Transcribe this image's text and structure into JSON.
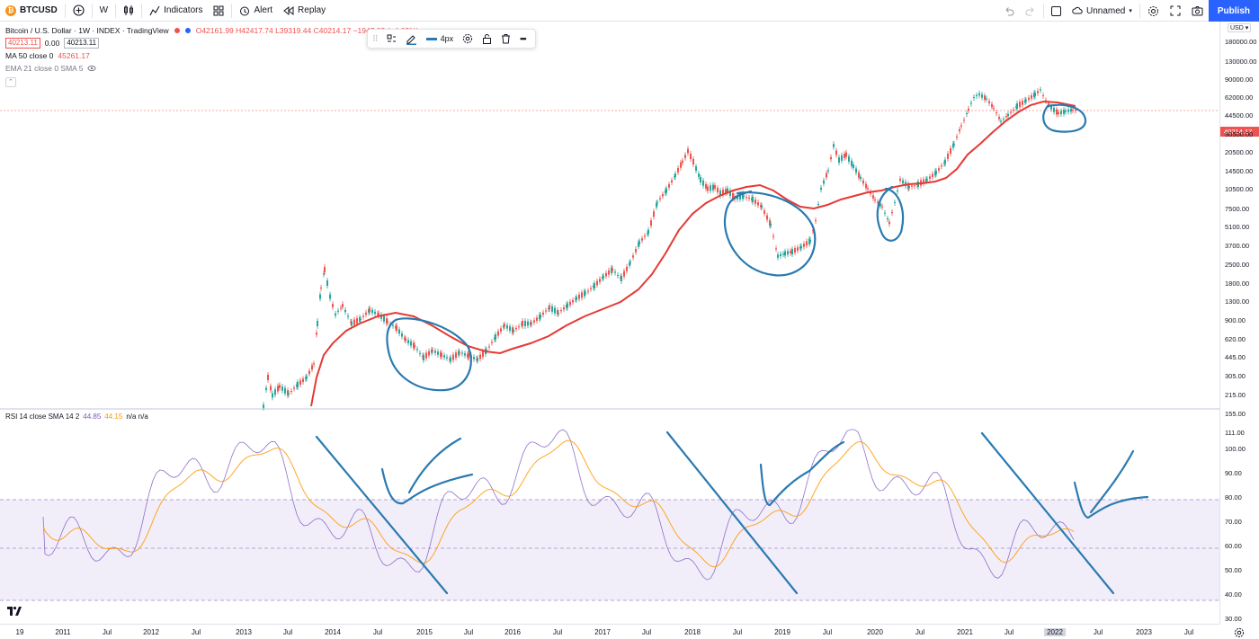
{
  "toolbar": {
    "symbol": "BTCUSD",
    "interval": "W",
    "indicators_label": "Indicators",
    "alert_label": "Alert",
    "replay_label": "Replay",
    "layout_name": "Unnamed",
    "publish_label": "Publish"
  },
  "legend": {
    "title": "Bitcoin / U.S. Dollar · 1W · INDEX · TradingView",
    "ohlc": "O42161.99 H42417.74 L39319.44 C40214.17 −1947.82 (−4.62%)",
    "price_box_1": "40213.11",
    "spread": "0.00",
    "price_box_2": "40213.11",
    "ma_label": "MA 50 close 0",
    "ma_value": "45261.17",
    "ema_label": "EMA 21 close 0 SMA 5"
  },
  "floating_toolbar": {
    "width_label": "4px"
  },
  "rsi": {
    "label": "RSI 14 close SMA 14 2",
    "value_rsi": "44.85",
    "value_sma": "44.15",
    "na": "n/a n/a"
  },
  "price_scale": {
    "currency": "USD",
    "current_price": "40214.17",
    "labels": [
      "180000.00",
      "130000.00",
      "90000.00",
      "62000.00",
      "44500.00",
      "30500.00",
      "20500.00",
      "14500.00",
      "10500.00",
      "7500.00",
      "5100.00",
      "3700.00",
      "2500.00",
      "1800.00",
      "1300.00",
      "900.00",
      "620.00",
      "445.00",
      "305.00",
      "215.00",
      "155.00",
      "111.00"
    ],
    "rsi_labels": [
      "100.00",
      "90.00",
      "80.00",
      "70.00",
      "60.00",
      "50.00",
      "40.00",
      "30.00"
    ]
  },
  "time_scale": {
    "labels": [
      "19",
      "2011",
      "Jul",
      "2012",
      "Jul",
      "2013",
      "Jul",
      "2014",
      "Jul",
      "2015",
      "Jul",
      "2016",
      "Jul",
      "2017",
      "Jul",
      "2018",
      "Jul",
      "2019",
      "Jul",
      "2020",
      "Jul",
      "2021",
      "Jul",
      "2022",
      "Jul",
      "2023",
      "Jul"
    ],
    "highlighted": "2022"
  },
  "colors": {
    "ma": "#e53935",
    "up": "#26a69a",
    "down": "#ef5350",
    "rsi": "#7e57c2",
    "rsi_sma": "#ff9800",
    "drawing": "#2a7ab0",
    "accent": "#2962ff"
  },
  "chart_data": {
    "type": "candlestick",
    "ticker": "BTCUSD",
    "interval": "1W",
    "y_scale": "log",
    "overlays": [
      "MA 50",
      "EMA 21"
    ],
    "indicator": "RSI 14",
    "rsi_levels": [
      30,
      50,
      70
    ]
  }
}
